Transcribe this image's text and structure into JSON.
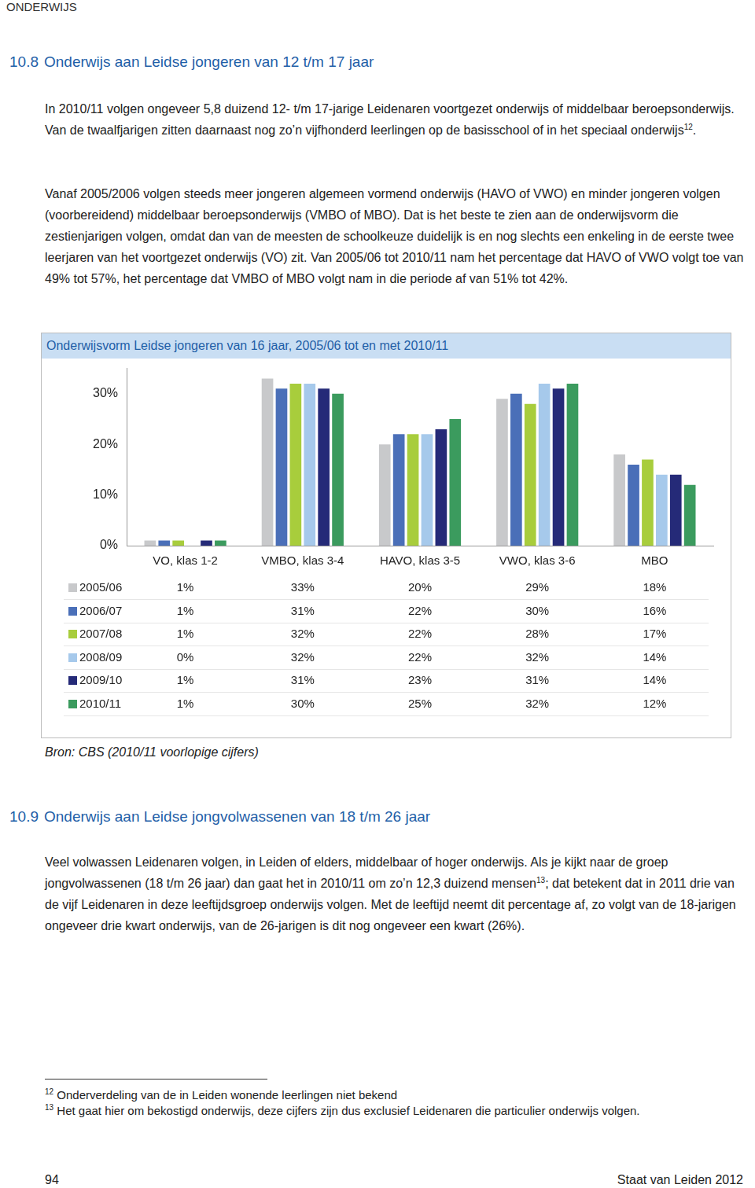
{
  "page": {
    "header": "ONDERWIJS",
    "sections": [
      {
        "number": "10.8",
        "title": "Onderwijs aan Leidse jongeren van 12 t/m 17 jaar",
        "paragraphs": [
          [
            {
              "text": "In 2010/11 volgen ongeveer 5,8 duizend 12- t/m 17-jarige Leidenaren voortgezet onderwijs of middelbaar beroepsonderwijs. Van de twaalfjarigen zitten daarnaast nog zo’n vijfhonderd leerlingen op de basisschool of in het speciaal onderwijs"
            },
            {
              "sup": "12"
            },
            {
              "text": "."
            }
          ],
          [
            {
              "text": "Vanaf 2005/2006 volgen steeds meer jongeren algemeen vormend onderwijs (HAVO of VWO) en minder jongeren volgen (voorbereidend) middelbaar beroepsonderwijs (VMBO of MBO). Dat is het beste te zien aan de onderwijsvorm die zestienjarigen volgen, omdat dan van de meesten de schoolkeuze duidelijk is en nog slechts een enkeling in de eerste twee leerjaren van het voortgezet onderwijs (VO) zit. Van 2005/06 tot 2010/11 nam het percentage dat HAVO of VWO volgt toe van 49% tot 57%, het percentage dat VMBO of MBO volgt nam in die periode af van 51% tot 42%."
            }
          ]
        ]
      },
      {
        "number": "10.9",
        "title": "Onderwijs aan Leidse jongvolwassenen van 18 t/m 26 jaar",
        "paragraphs": [
          [
            {
              "text": "Veel volwassen Leidenaren volgen, in Leiden of elders, middelbaar of hoger onderwijs. Als je kijkt naar de groep jongvolwassenen (18 t/m 26 jaar) dan gaat het in 2010/11 om zo’n 12,3 duizend mensen"
            },
            {
              "sup": "13"
            },
            {
              "text": "; dat betekent dat in 2011 drie van de vijf Leidenaren in deze leeftijdsgroep onderwijs volgen. Met de leeftijd neemt dit percentage af, zo volgt van de 18-jarigen ongeveer drie kwart onderwijs, van de 26-jarigen is dit nog ongeveer een kwart (26%)."
            }
          ]
        ]
      }
    ],
    "source": "Bron: CBS (2010/11 voorlopige cijfers)",
    "footnotes": [
      {
        "mark": "12",
        "text": "Onderverdeling van de in Leiden wonende leerlingen niet bekend"
      },
      {
        "mark": "13",
        "text": "Het gaat hier om bekostigd onderwijs, deze cijfers zijn dus exclusief Leidenaren die particulier onderwijs volgen."
      }
    ],
    "footer": {
      "page": "94",
      "publication": "Staat van Leiden 2012"
    }
  },
  "chart_data": {
    "type": "bar",
    "title": "Onderwijsvorm Leidse jongeren van 16 jaar, 2005/06 tot en met 2010/11",
    "categories": [
      "VO, klas 1-2",
      "VMBO, klas 3-4",
      "HAVO, klas 3-5",
      "VWO, klas 3-6",
      "MBO"
    ],
    "series": [
      {
        "name": "2005/06",
        "color": "#c8c9cb",
        "values": [
          1,
          33,
          20,
          29,
          18
        ],
        "value_labels": [
          "1%",
          "33%",
          "20%",
          "29%",
          "18%"
        ]
      },
      {
        "name": "2006/07",
        "color": "#4a6fb8",
        "values": [
          1,
          31,
          22,
          30,
          16
        ],
        "value_labels": [
          "1%",
          "31%",
          "22%",
          "30%",
          "16%"
        ]
      },
      {
        "name": "2007/08",
        "color": "#a8cd3c",
        "values": [
          1,
          32,
          22,
          28,
          17
        ],
        "value_labels": [
          "1%",
          "32%",
          "22%",
          "28%",
          "17%"
        ]
      },
      {
        "name": "2008/09",
        "color": "#a6c9eb",
        "values": [
          0,
          32,
          22,
          32,
          14
        ],
        "value_labels": [
          "0%",
          "32%",
          "22%",
          "32%",
          "14%"
        ]
      },
      {
        "name": "2009/10",
        "color": "#252a78",
        "values": [
          1,
          31,
          23,
          31,
          14
        ],
        "value_labels": [
          "1%",
          "31%",
          "23%",
          "31%",
          "14%"
        ]
      },
      {
        "name": "2010/11",
        "color": "#3b9b5e",
        "values": [
          1,
          30,
          25,
          32,
          12
        ],
        "value_labels": [
          "1%",
          "30%",
          "25%",
          "32%",
          "12%"
        ]
      }
    ],
    "ylim": [
      0,
      35
    ],
    "yticks": [
      {
        "value": 0,
        "label": "0%"
      },
      {
        "value": 10,
        "label": "10%"
      },
      {
        "value": 20,
        "label": "20%"
      },
      {
        "value": 30,
        "label": "30%"
      }
    ],
    "grid": false
  }
}
